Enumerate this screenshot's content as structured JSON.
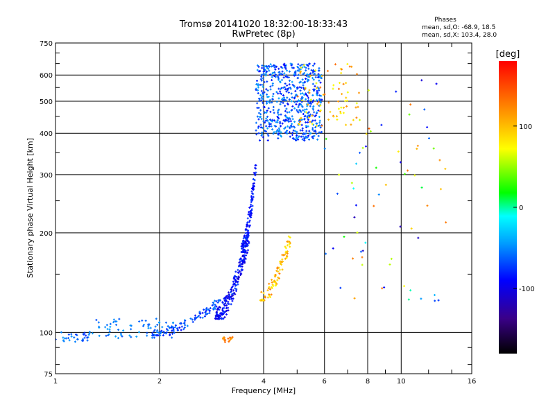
{
  "chart_data": {
    "type": "scatter",
    "title": "Tromsø 20141020 18:32:00-18:33:43",
    "subtitle": "RwPretec (8p)",
    "xlabel": "Frequency [MHz]",
    "ylabel": "Stationary phase Virtual Height [km]",
    "x_scale": "log2",
    "y_scale": "log",
    "xlim": [
      1,
      16
    ],
    "ylim": [
      75,
      750
    ],
    "grid": true,
    "x_ticks": [
      "1",
      "2",
      "4",
      "6",
      "8",
      "10",
      "16"
    ],
    "x_tick_values": [
      1,
      2,
      4,
      6,
      8,
      10,
      16
    ],
    "y_ticks": [
      "750",
      "600",
      "500",
      "400",
      "300",
      "200",
      "100",
      "75"
    ],
    "y_tick_values": [
      750,
      600,
      500,
      400,
      300,
      200,
      100,
      75
    ],
    "info": {
      "heading": "Phases",
      "line1": "mean, sd,O: -68.9, 18.5",
      "line2": "mean, sd,X: 103.4, 28.0"
    },
    "colorbar": {
      "label": "[deg]",
      "range": [
        -180,
        180
      ],
      "ticks": [
        "100",
        "0",
        "-100"
      ],
      "tick_values": [
        100,
        0,
        -100
      ],
      "colors": [
        "#000000",
        "#3a0088",
        "#0000ff",
        "#00a0ff",
        "#00ffff",
        "#00ff00",
        "#ffff00",
        "#ff8000",
        "#ff0000"
      ]
    },
    "clusters": [
      {
        "name": "E-region trace",
        "x": [
          1.0,
          1.25
        ],
        "y": [
          93,
          101
        ],
        "phase": [
          -80,
          -40
        ],
        "count": 30
      },
      {
        "name": "F1 low trace",
        "x": [
          1.25,
          2.2
        ],
        "y": [
          96,
          110
        ],
        "phase": [
          -70,
          -40
        ],
        "count": 70
      },
      {
        "name": "F1 cusp",
        "x": [
          1.9,
          3.0
        ],
        "y": [
          98,
          125
        ],
        "phase": [
          -90,
          -50
        ],
        "count": 110
      },
      {
        "name": "F2 O-mode rise",
        "x": [
          2.9,
          3.65
        ],
        "y": [
          110,
          200
        ],
        "phase": [
          -110,
          -70
        ],
        "count": 220
      },
      {
        "name": "F2 O-mode steep",
        "x": [
          3.45,
          3.8
        ],
        "y": [
          175,
          320
        ],
        "phase": [
          -100,
          -70
        ],
        "count": 120
      },
      {
        "name": "X-mode trace",
        "x": [
          3.9,
          4.8
        ],
        "y": [
          125,
          195
        ],
        "phase": [
          70,
          130
        ],
        "count": 90
      },
      {
        "name": "Spread F block",
        "x": [
          3.8,
          5.9
        ],
        "y": [
          380,
          650
        ],
        "phase": [
          -90,
          -40
        ],
        "count": 600
      },
      {
        "name": "Spread F X-mode",
        "x": [
          5.0,
          7.6
        ],
        "y": [
          420,
          650
        ],
        "phase": [
          60,
          140
        ],
        "count": 80
      },
      {
        "name": "Scattered high",
        "x": [
          6.0,
          13.5
        ],
        "y": [
          120,
          650
        ],
        "phase": [
          -120,
          140
        ],
        "count": 70
      },
      {
        "name": "Orange patch",
        "x": [
          3.05,
          3.25
        ],
        "y": [
          93,
          97
        ],
        "phase": [
          110,
          140
        ],
        "count": 16
      }
    ]
  }
}
